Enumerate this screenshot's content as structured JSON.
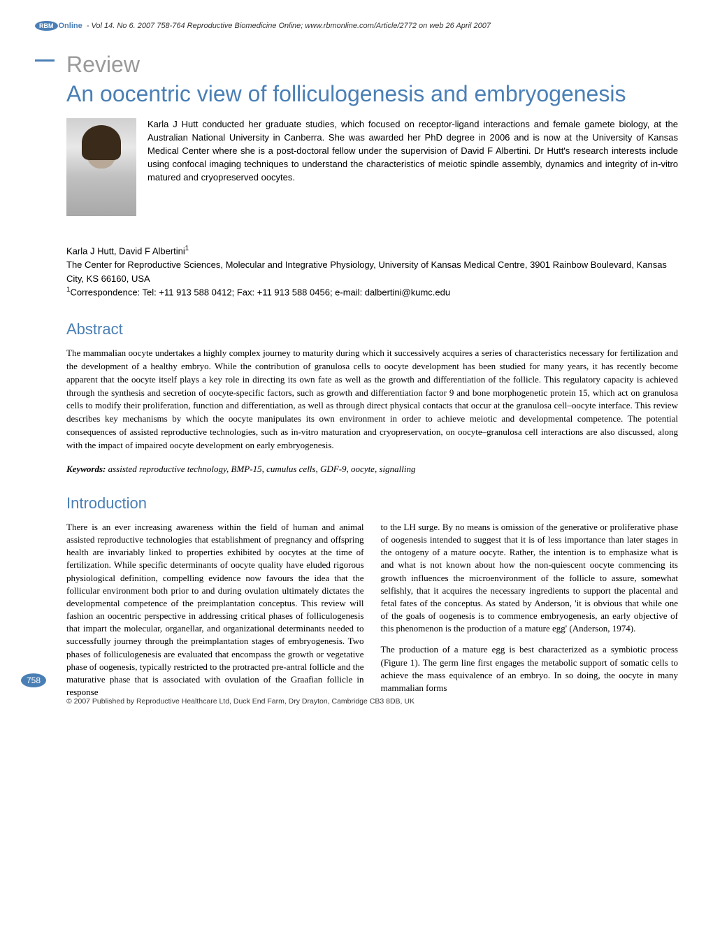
{
  "header": {
    "logo_badge": "RBM",
    "logo_suffix": "Online",
    "citation": "- Vol 14. No 6. 2007 758-764 Reproductive Biomedicine Online; www.rbmonline.com/Article/2772 on web 26 April 2007"
  },
  "article_type": "Review",
  "title": "An oocentric view of folliculogenesis and embryogenesis",
  "bio": "Karla J Hutt conducted her graduate studies, which focused on receptor-ligand interactions and female gamete biology, at the Australian National University in Canberra. She was awarded her PhD degree in 2006 and is now at the University of Kansas Medical Center where she is a post-doctoral fellow under the supervision of David F Albertini. Dr Hutt's research interests include using confocal imaging techniques to understand the characteristics of meiotic spindle assembly, dynamics and integrity of in-vitro matured and cryopreserved oocytes.",
  "authors": {
    "names": "Karla J Hutt, David F Albertini",
    "affiliation": "The Center for Reproductive Sciences, Molecular and Integrative Physiology, University of Kansas Medical Centre, 3901 Rainbow Boulevard, Kansas City, KS 66160, USA",
    "correspondence": "Correspondence:  Tel: +11 913 588 0412; Fax: +11 913 588 0456; e-mail: dalbertini@kumc.edu"
  },
  "abstract": {
    "heading": "Abstract",
    "text": "The mammalian oocyte undertakes a highly complex journey to maturity during which it successively acquires a series of characteristics necessary for fertilization and the development of a healthy embryo. While the contribution of granulosa cells to oocyte development has been studied for many years, it has recently become apparent that the oocyte itself plays a key role in directing its own fate as well as the growth and differentiation of the follicle. This regulatory capacity is achieved through the synthesis and secretion of oocyte-specific factors, such as growth and differentiation factor 9 and bone morphogenetic protein 15, which act on granulosa cells to modify their proliferation, function and differentiation, as well as through direct physical contacts that occur at the granulosa cell–oocyte interface. This review describes key mechanisms by which the oocyte manipulates its own environment in order to achieve meiotic and developmental competence. The potential consequences of assisted reproductive technologies, such as in-vitro maturation and cryopreservation, on oocyte–granulosa cell interactions are also discussed, along with the impact of impaired oocyte development on early embryogenesis."
  },
  "keywords": {
    "label": "Keywords:",
    "text": "assisted reproductive technology, BMP-15, cumulus cells, GDF-9, oocyte, signalling"
  },
  "introduction": {
    "heading": "Introduction",
    "col1_p1": "There is an ever increasing awareness within the field of human and animal assisted reproductive technologies that establishment of pregnancy and offspring health are invariably linked to properties exhibited by oocytes at the time of fertilization. While specific determinants of oocyte quality have eluded rigorous physiological definition, compelling evidence now favours the idea that the follicular environment both prior to and during ovulation ultimately dictates the developmental competence of the preimplantation conceptus. This review will fashion an oocentric perspective in addressing critical phases of folliculogenesis that impart the molecular, organellar, and organizational determinants needed to successfully journey through the preimplantation stages of embryogenesis. Two phases of folliculogenesis are evaluated that encompass the growth or vegetative phase of oogenesis, typically restricted to the protracted pre-antral follicle and the maturative phase that is associated with ovulation of the Graafian follicle in response",
    "col2_p1": "to the LH surge. By no means is omission of the generative or proliferative phase of oogenesis intended to suggest that it is of less importance than later stages in the ontogeny of a mature oocyte. Rather, the intention is to emphasize what is and what is not known about how the non-quiescent oocyte commencing its growth influences the microenvironment of the follicle to assure, somewhat selfishly, that it acquires the necessary ingredients to support the placental and fetal fates of the conceptus. As stated by Anderson, 'it is obvious that while one of the goals of oogenesis is to commence embryogenesis, an early objective of this phenomenon is the production of a mature egg' (Anderson, 1974).",
    "col2_p2": "The production of a mature egg is best characterized as a symbiotic process (Figure 1). The germ line first engages the metabolic support of somatic cells to achieve the mass equivalence of an embryo. In so doing, the oocyte in many mammalian forms"
  },
  "page_number": "758",
  "footer": "© 2007 Published by Reproductive Healthcare Ltd, Duck End Farm, Dry Drayton, Cambridge CB3 8DB, UK",
  "colors": {
    "accent": "#4a7fb5",
    "gray": "#999999",
    "text": "#000000"
  }
}
